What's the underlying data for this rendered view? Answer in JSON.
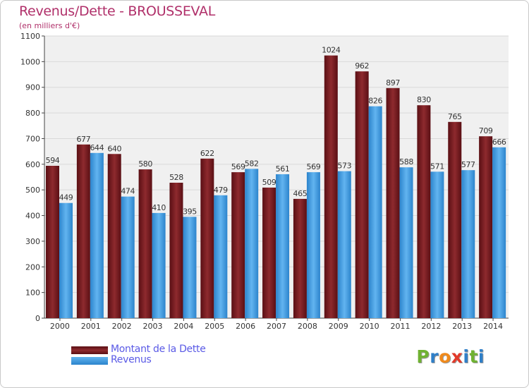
{
  "header": {
    "title": "Revenus/Dette - BROUSSEVAL",
    "subtitle": "(en milliers d'€)"
  },
  "colors": {
    "dette": "#7a1e22",
    "revenus": "#4aa3e6",
    "title": "#b0306a",
    "legend_text": "#5a5ae6",
    "grid": "#d9d9d9",
    "plot_bg": "#f0f0f0"
  },
  "legend": {
    "position": "bottom-left",
    "items": [
      {
        "label": "Montant de la Dette",
        "color": "#7a1e22"
      },
      {
        "label": "Revenus",
        "color": "#4aa3e6"
      }
    ]
  },
  "logo": {
    "letters": [
      "P",
      "r",
      "o",
      "x",
      "i",
      "t",
      "i"
    ],
    "colors": [
      "#6fb232",
      "#2f7fc8",
      "#f08a1c",
      "#e23a2a",
      "#2f7fc8",
      "#6fb232",
      "#2f7fc8"
    ]
  },
  "chart_data": {
    "type": "bar",
    "title": "Revenus/Dette - BROUSSEVAL",
    "subtitle": "(en milliers d'€)",
    "xlabel": "",
    "ylabel": "",
    "ylim": [
      0,
      1100
    ],
    "yticks": [
      0,
      100,
      200,
      300,
      400,
      500,
      600,
      700,
      800,
      900,
      1000,
      1100
    ],
    "grid": true,
    "categories": [
      "2000",
      "2001",
      "2002",
      "2003",
      "2004",
      "2005",
      "2006",
      "2007",
      "2008",
      "2009",
      "2010",
      "2011",
      "2012",
      "2013",
      "2014"
    ],
    "series": [
      {
        "name": "Montant de la Dette",
        "values": [
          594,
          677,
          640,
          580,
          528,
          622,
          569,
          509,
          465,
          1024,
          962,
          897,
          830,
          765,
          709
        ]
      },
      {
        "name": "Revenus",
        "values": [
          449,
          644,
          474,
          410,
          395,
          479,
          582,
          561,
          569,
          573,
          826,
          588,
          571,
          577,
          666
        ]
      }
    ]
  }
}
